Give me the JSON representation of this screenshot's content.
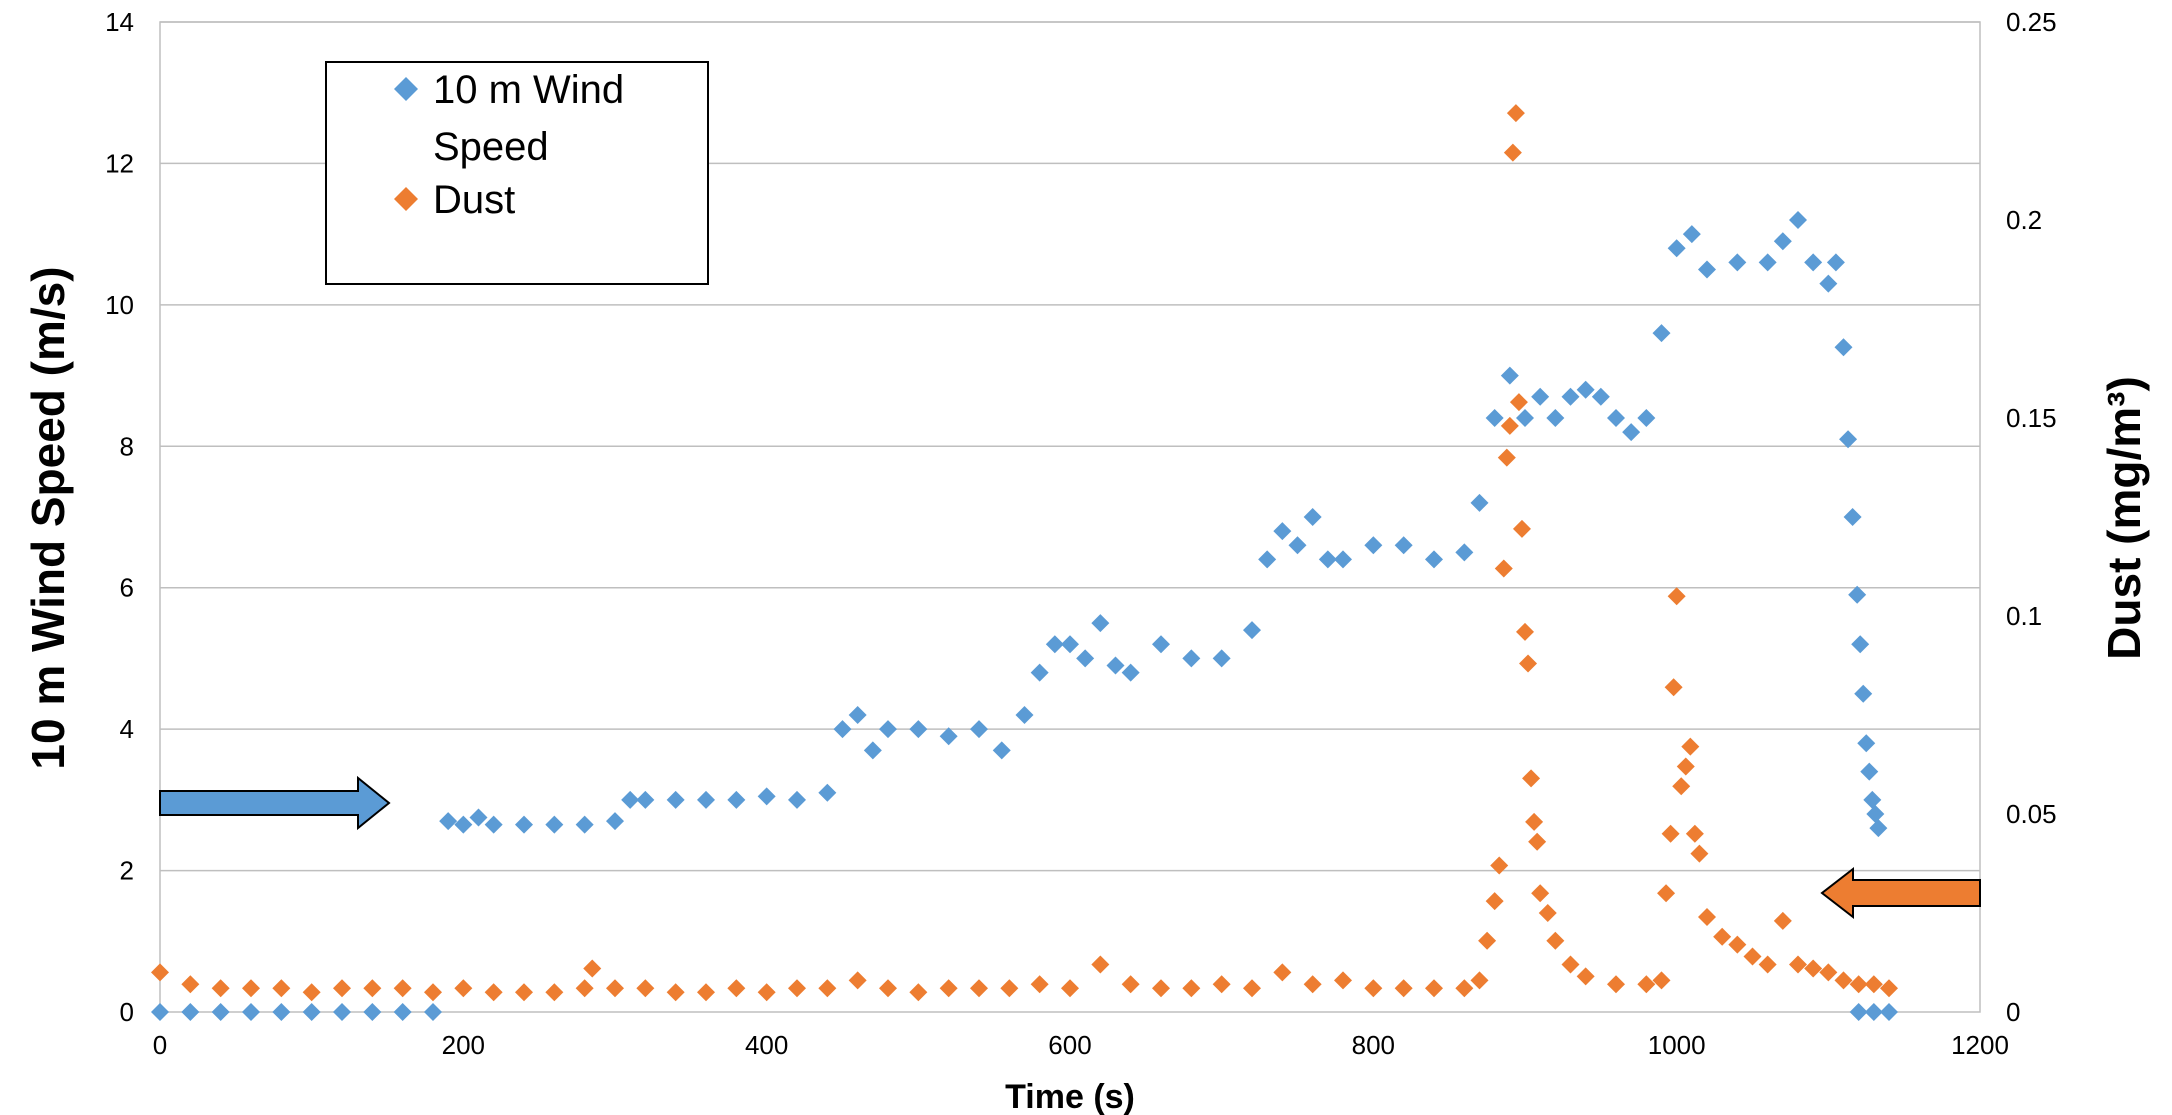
{
  "chart_data": {
    "type": "scatter",
    "title": "",
    "xlabel": "Time (s)",
    "ylabel_left": "10 m Wind  Speed (m/s)",
    "ylabel_right": "Dust (mg/m³)",
    "xlim": [
      0,
      1200
    ],
    "ylim_left": [
      0,
      14
    ],
    "ylim_right": [
      0,
      0.25
    ],
    "x_ticks": [
      "0",
      "200",
      "400",
      "600",
      "800",
      "1000",
      "1200"
    ],
    "y_left_ticks": [
      "0",
      "2",
      "4",
      "6",
      "8",
      "10",
      "12",
      "14"
    ],
    "y_right_ticks": [
      "0",
      "0.05",
      "0.1",
      "0.15",
      "0.2",
      "0.25"
    ],
    "grid": "horizontal",
    "legend_placement": "top-left",
    "legend": [
      "10 m Wind",
      "Speed",
      "Dust"
    ],
    "series": [
      {
        "name": "10 m Wind Speed",
        "axis": "left",
        "color": "#5B9BD5",
        "marker": "diamond",
        "points": [
          [
            0,
            0
          ],
          [
            20,
            0
          ],
          [
            40,
            0
          ],
          [
            60,
            0
          ],
          [
            80,
            0
          ],
          [
            100,
            0
          ],
          [
            120,
            0
          ],
          [
            140,
            0
          ],
          [
            160,
            0
          ],
          [
            180,
            0
          ],
          [
            190,
            2.7
          ],
          [
            200,
            2.65
          ],
          [
            210,
            2.75
          ],
          [
            220,
            2.65
          ],
          [
            240,
            2.65
          ],
          [
            260,
            2.65
          ],
          [
            280,
            2.65
          ],
          [
            300,
            2.7
          ],
          [
            310,
            3.0
          ],
          [
            320,
            3.0
          ],
          [
            340,
            3.0
          ],
          [
            360,
            3.0
          ],
          [
            380,
            3.0
          ],
          [
            400,
            3.05
          ],
          [
            420,
            3.0
          ],
          [
            440,
            3.1
          ],
          [
            450,
            4.0
          ],
          [
            460,
            4.2
          ],
          [
            470,
            3.7
          ],
          [
            480,
            4.0
          ],
          [
            500,
            4.0
          ],
          [
            520,
            3.9
          ],
          [
            540,
            4.0
          ],
          [
            555,
            3.7
          ],
          [
            570,
            4.2
          ],
          [
            580,
            4.8
          ],
          [
            590,
            5.2
          ],
          [
            600,
            5.2
          ],
          [
            610,
            5.0
          ],
          [
            620,
            5.5
          ],
          [
            630,
            4.9
          ],
          [
            640,
            4.8
          ],
          [
            660,
            5.2
          ],
          [
            680,
            5.0
          ],
          [
            700,
            5.0
          ],
          [
            720,
            5.4
          ],
          [
            730,
            6.4
          ],
          [
            740,
            6.8
          ],
          [
            750,
            6.6
          ],
          [
            760,
            7.0
          ],
          [
            770,
            6.4
          ],
          [
            780,
            6.4
          ],
          [
            800,
            6.6
          ],
          [
            820,
            6.6
          ],
          [
            840,
            6.4
          ],
          [
            860,
            6.5
          ],
          [
            870,
            7.2
          ],
          [
            880,
            8.4
          ],
          [
            890,
            9.0
          ],
          [
            900,
            8.4
          ],
          [
            910,
            8.7
          ],
          [
            920,
            8.4
          ],
          [
            930,
            8.7
          ],
          [
            940,
            8.8
          ],
          [
            950,
            8.7
          ],
          [
            960,
            8.4
          ],
          [
            970,
            8.2
          ],
          [
            980,
            8.4
          ],
          [
            990,
            9.6
          ],
          [
            1000,
            10.8
          ],
          [
            1010,
            11.0
          ],
          [
            1020,
            10.5
          ],
          [
            1040,
            10.6
          ],
          [
            1060,
            10.6
          ],
          [
            1070,
            10.9
          ],
          [
            1080,
            11.2
          ],
          [
            1090,
            10.6
          ],
          [
            1100,
            10.3
          ],
          [
            1105,
            10.6
          ],
          [
            1110,
            9.4
          ],
          [
            1113,
            8.1
          ],
          [
            1116,
            7.0
          ],
          [
            1119,
            5.9
          ],
          [
            1121,
            5.2
          ],
          [
            1123,
            4.5
          ],
          [
            1125,
            3.8
          ],
          [
            1127,
            3.4
          ],
          [
            1129,
            3.0
          ],
          [
            1131,
            2.8
          ],
          [
            1133,
            2.6
          ],
          [
            1120,
            0
          ],
          [
            1130,
            0
          ],
          [
            1140,
            0
          ]
        ]
      },
      {
        "name": "Dust",
        "axis": "right",
        "color": "#ED7D31",
        "marker": "diamond",
        "points": [
          [
            0,
            0.01
          ],
          [
            20,
            0.007
          ],
          [
            40,
            0.006
          ],
          [
            60,
            0.006
          ],
          [
            80,
            0.006
          ],
          [
            100,
            0.005
          ],
          [
            120,
            0.006
          ],
          [
            140,
            0.006
          ],
          [
            160,
            0.006
          ],
          [
            180,
            0.005
          ],
          [
            200,
            0.006
          ],
          [
            220,
            0.005
          ],
          [
            240,
            0.005
          ],
          [
            260,
            0.005
          ],
          [
            280,
            0.006
          ],
          [
            285,
            0.011
          ],
          [
            300,
            0.006
          ],
          [
            320,
            0.006
          ],
          [
            340,
            0.005
          ],
          [
            360,
            0.005
          ],
          [
            380,
            0.006
          ],
          [
            400,
            0.005
          ],
          [
            420,
            0.006
          ],
          [
            440,
            0.006
          ],
          [
            460,
            0.008
          ],
          [
            480,
            0.006
          ],
          [
            500,
            0.005
          ],
          [
            520,
            0.006
          ],
          [
            540,
            0.006
          ],
          [
            560,
            0.006
          ],
          [
            580,
            0.007
          ],
          [
            600,
            0.006
          ],
          [
            620,
            0.012
          ],
          [
            640,
            0.007
          ],
          [
            660,
            0.006
          ],
          [
            680,
            0.006
          ],
          [
            700,
            0.007
          ],
          [
            720,
            0.006
          ],
          [
            740,
            0.01
          ],
          [
            760,
            0.007
          ],
          [
            780,
            0.008
          ],
          [
            800,
            0.006
          ],
          [
            820,
            0.006
          ],
          [
            840,
            0.006
          ],
          [
            860,
            0.006
          ],
          [
            870,
            0.008
          ],
          [
            875,
            0.018
          ],
          [
            880,
            0.028
          ],
          [
            883,
            0.037
          ],
          [
            886,
            0.112
          ],
          [
            888,
            0.14
          ],
          [
            890,
            0.148
          ],
          [
            892,
            0.217
          ],
          [
            894,
            0.227
          ],
          [
            896,
            0.154
          ],
          [
            898,
            0.122
          ],
          [
            900,
            0.096
          ],
          [
            902,
            0.088
          ],
          [
            904,
            0.059
          ],
          [
            906,
            0.048
          ],
          [
            908,
            0.043
          ],
          [
            910,
            0.03
          ],
          [
            915,
            0.025
          ],
          [
            920,
            0.018
          ],
          [
            930,
            0.012
          ],
          [
            940,
            0.009
          ],
          [
            960,
            0.007
          ],
          [
            980,
            0.007
          ],
          [
            990,
            0.008
          ],
          [
            993,
            0.03
          ],
          [
            996,
            0.045
          ],
          [
            998,
            0.082
          ],
          [
            1000,
            0.105
          ],
          [
            1003,
            0.057
          ],
          [
            1006,
            0.062
          ],
          [
            1009,
            0.067
          ],
          [
            1012,
            0.045
          ],
          [
            1015,
            0.04
          ],
          [
            1020,
            0.024
          ],
          [
            1030,
            0.019
          ],
          [
            1040,
            0.017
          ],
          [
            1050,
            0.014
          ],
          [
            1060,
            0.012
          ],
          [
            1070,
            0.023
          ],
          [
            1080,
            0.012
          ],
          [
            1090,
            0.011
          ],
          [
            1100,
            0.01
          ],
          [
            1110,
            0.008
          ],
          [
            1120,
            0.007
          ],
          [
            1130,
            0.007
          ],
          [
            1140,
            0.006
          ]
        ]
      }
    ]
  }
}
